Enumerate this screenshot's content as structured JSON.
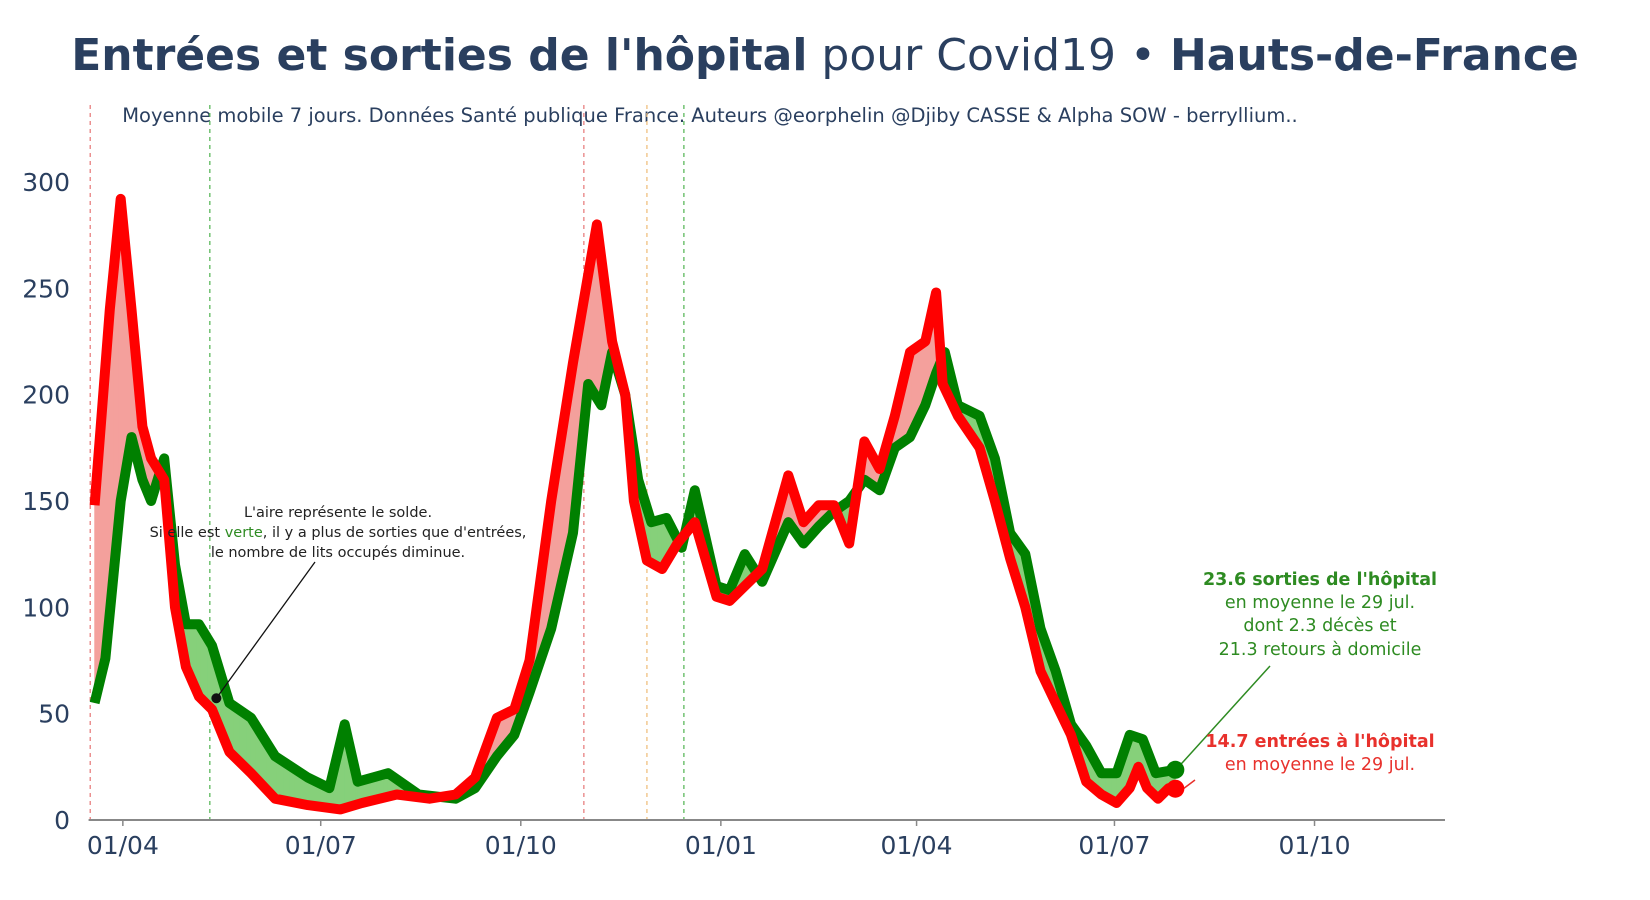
{
  "title": {
    "part1": "Entrées et sorties de l'hôpital",
    "part2": " pour Covid19 • ",
    "part3": "Hauts-de-France"
  },
  "subtitle": "Moyenne mobile 7 jours. Données Santé publique France. Auteurs @eorphelin @Djiby CASSE & Alpha SOW - berryllium..",
  "colors": {
    "entries": "#ff0000",
    "exits": "#008000",
    "fill_entries_higher": "#f4a09c",
    "fill_exits_higher": "#86d07a",
    "axis_text": "#2a3f5f",
    "vline_red": "#e88080",
    "vline_green": "#5cb85c",
    "vline_orange": "#f0c080"
  },
  "chart_data": {
    "type": "line",
    "x_start": "2020-03-19",
    "x_end": "2021-07-29",
    "xlim": [
      "2020-03-10",
      "2021-11-30"
    ],
    "ylim": [
      0,
      315
    ],
    "x_ticks": [
      {
        "date": "2020-04-01",
        "label": "01/04"
      },
      {
        "date": "2020-07-01",
        "label": "01/07"
      },
      {
        "date": "2020-10-01",
        "label": "01/10"
      },
      {
        "date": "2021-01-01",
        "label": "01/01"
      },
      {
        "date": "2021-04-01",
        "label": "01/04"
      },
      {
        "date": "2021-07-01",
        "label": "01/07"
      },
      {
        "date": "2021-10-01",
        "label": "01/10"
      }
    ],
    "y_ticks": [
      0,
      50,
      100,
      150,
      200,
      250,
      300
    ],
    "vertical_lines": [
      {
        "date": "2020-03-17",
        "color": "red"
      },
      {
        "date": "2020-05-11",
        "color": "green"
      },
      {
        "date": "2020-10-30",
        "color": "red"
      },
      {
        "date": "2020-11-28",
        "color": "orange"
      },
      {
        "date": "2020-12-15",
        "color": "green"
      }
    ],
    "series": [
      {
        "name": "entrées",
        "points": [
          [
            "2020-03-19",
            148
          ],
          [
            "2020-03-26",
            240
          ],
          [
            "2020-03-31",
            292
          ],
          [
            "2020-04-05",
            240
          ],
          [
            "2020-04-10",
            185
          ],
          [
            "2020-04-14",
            170
          ],
          [
            "2020-04-20",
            160
          ],
          [
            "2020-04-25",
            100
          ],
          [
            "2020-04-30",
            72
          ],
          [
            "2020-05-06",
            58
          ],
          [
            "2020-05-12",
            52
          ],
          [
            "2020-05-20",
            32
          ],
          [
            "2020-05-30",
            22
          ],
          [
            "2020-06-10",
            10
          ],
          [
            "2020-06-25",
            7
          ],
          [
            "2020-07-10",
            5
          ],
          [
            "2020-07-20",
            8
          ],
          [
            "2020-08-05",
            12
          ],
          [
            "2020-08-20",
            10
          ],
          [
            "2020-09-01",
            12
          ],
          [
            "2020-09-10",
            20
          ],
          [
            "2020-09-20",
            48
          ],
          [
            "2020-09-28",
            52
          ],
          [
            "2020-10-05",
            75
          ],
          [
            "2020-10-15",
            150
          ],
          [
            "2020-10-25",
            215
          ],
          [
            "2020-11-05",
            280
          ],
          [
            "2020-11-12",
            225
          ],
          [
            "2020-11-18",
            200
          ],
          [
            "2020-11-22",
            150
          ],
          [
            "2020-11-28",
            122
          ],
          [
            "2020-12-05",
            118
          ],
          [
            "2020-12-12",
            130
          ],
          [
            "2020-12-20",
            140
          ],
          [
            "2020-12-30",
            105
          ],
          [
            "2021-01-05",
            103
          ],
          [
            "2021-01-12",
            110
          ],
          [
            "2021-01-20",
            118
          ],
          [
            "2021-02-01",
            162
          ],
          [
            "2021-02-08",
            140
          ],
          [
            "2021-02-15",
            148
          ],
          [
            "2021-02-22",
            148
          ],
          [
            "2021-03-01",
            130
          ],
          [
            "2021-03-08",
            178
          ],
          [
            "2021-03-15",
            165
          ],
          [
            "2021-03-22",
            190
          ],
          [
            "2021-03-29",
            220
          ],
          [
            "2021-04-05",
            225
          ],
          [
            "2021-04-10",
            248
          ],
          [
            "2021-04-13",
            205
          ],
          [
            "2021-04-20",
            190
          ],
          [
            "2021-04-30",
            175
          ],
          [
            "2021-05-07",
            150
          ],
          [
            "2021-05-14",
            123
          ],
          [
            "2021-05-21",
            100
          ],
          [
            "2021-05-28",
            70
          ],
          [
            "2021-06-04",
            55
          ],
          [
            "2021-06-11",
            40
          ],
          [
            "2021-06-18",
            18
          ],
          [
            "2021-06-25",
            12
          ],
          [
            "2021-07-02",
            8
          ],
          [
            "2021-07-08",
            15
          ],
          [
            "2021-07-12",
            25
          ],
          [
            "2021-07-16",
            15
          ],
          [
            "2021-07-21",
            10
          ],
          [
            "2021-07-26",
            15
          ],
          [
            "2021-07-29",
            14.7
          ]
        ]
      },
      {
        "name": "sorties",
        "points": [
          [
            "2020-03-19",
            55
          ],
          [
            "2020-03-24",
            76
          ],
          [
            "2020-03-31",
            150
          ],
          [
            "2020-04-05",
            180
          ],
          [
            "2020-04-10",
            160
          ],
          [
            "2020-04-14",
            150
          ],
          [
            "2020-04-20",
            170
          ],
          [
            "2020-04-25",
            120
          ],
          [
            "2020-04-30",
            92
          ],
          [
            "2020-05-06",
            92
          ],
          [
            "2020-05-12",
            82
          ],
          [
            "2020-05-20",
            55
          ],
          [
            "2020-05-30",
            48
          ],
          [
            "2020-06-10",
            30
          ],
          [
            "2020-06-25",
            20
          ],
          [
            "2020-07-05",
            15
          ],
          [
            "2020-07-12",
            45
          ],
          [
            "2020-07-18",
            18
          ],
          [
            "2020-08-01",
            22
          ],
          [
            "2020-08-15",
            12
          ],
          [
            "2020-09-01",
            10
          ],
          [
            "2020-09-10",
            15
          ],
          [
            "2020-09-20",
            30
          ],
          [
            "2020-09-28",
            40
          ],
          [
            "2020-10-05",
            60
          ],
          [
            "2020-10-15",
            90
          ],
          [
            "2020-10-25",
            135
          ],
          [
            "2020-11-01",
            205
          ],
          [
            "2020-11-07",
            195
          ],
          [
            "2020-11-12",
            220
          ],
          [
            "2020-11-18",
            200
          ],
          [
            "2020-11-24",
            160
          ],
          [
            "2020-11-30",
            140
          ],
          [
            "2020-12-07",
            142
          ],
          [
            "2020-12-14",
            128
          ],
          [
            "2020-12-20",
            155
          ],
          [
            "2020-12-30",
            110
          ],
          [
            "2021-01-05",
            108
          ],
          [
            "2021-01-12",
            125
          ],
          [
            "2021-01-20",
            112
          ],
          [
            "2021-02-01",
            140
          ],
          [
            "2021-02-08",
            130
          ],
          [
            "2021-02-15",
            138
          ],
          [
            "2021-02-22",
            145
          ],
          [
            "2021-03-01",
            150
          ],
          [
            "2021-03-08",
            160
          ],
          [
            "2021-03-15",
            155
          ],
          [
            "2021-03-22",
            175
          ],
          [
            "2021-03-29",
            180
          ],
          [
            "2021-04-05",
            195
          ],
          [
            "2021-04-10",
            210
          ],
          [
            "2021-04-14",
            220
          ],
          [
            "2021-04-20",
            195
          ],
          [
            "2021-04-30",
            190
          ],
          [
            "2021-05-07",
            170
          ],
          [
            "2021-05-14",
            135
          ],
          [
            "2021-05-21",
            125
          ],
          [
            "2021-05-28",
            90
          ],
          [
            "2021-06-04",
            70
          ],
          [
            "2021-06-11",
            45
          ],
          [
            "2021-06-18",
            35
          ],
          [
            "2021-06-25",
            22
          ],
          [
            "2021-07-02",
            22
          ],
          [
            "2021-07-08",
            40
          ],
          [
            "2021-07-14",
            38
          ],
          [
            "2021-07-20",
            22
          ],
          [
            "2021-07-29",
            23.6
          ]
        ]
      }
    ]
  },
  "annotations": {
    "note_lines": [
      "L'aire représente le solde.",
      "Si elle est ",
      "verte",
      ", il y a plus de sorties que d'entrées,",
      "le nombre de lits occupés diminue."
    ],
    "exits_lines": [
      "23.6 sorties de l'hôpital",
      "en moyenne le 29 jul.",
      "dont 2.3 décès et",
      "21.3 retours à domicile"
    ],
    "entries_lines": [
      "14.7 entrées à l'hôpital",
      "en moyenne le 29 jul."
    ]
  }
}
